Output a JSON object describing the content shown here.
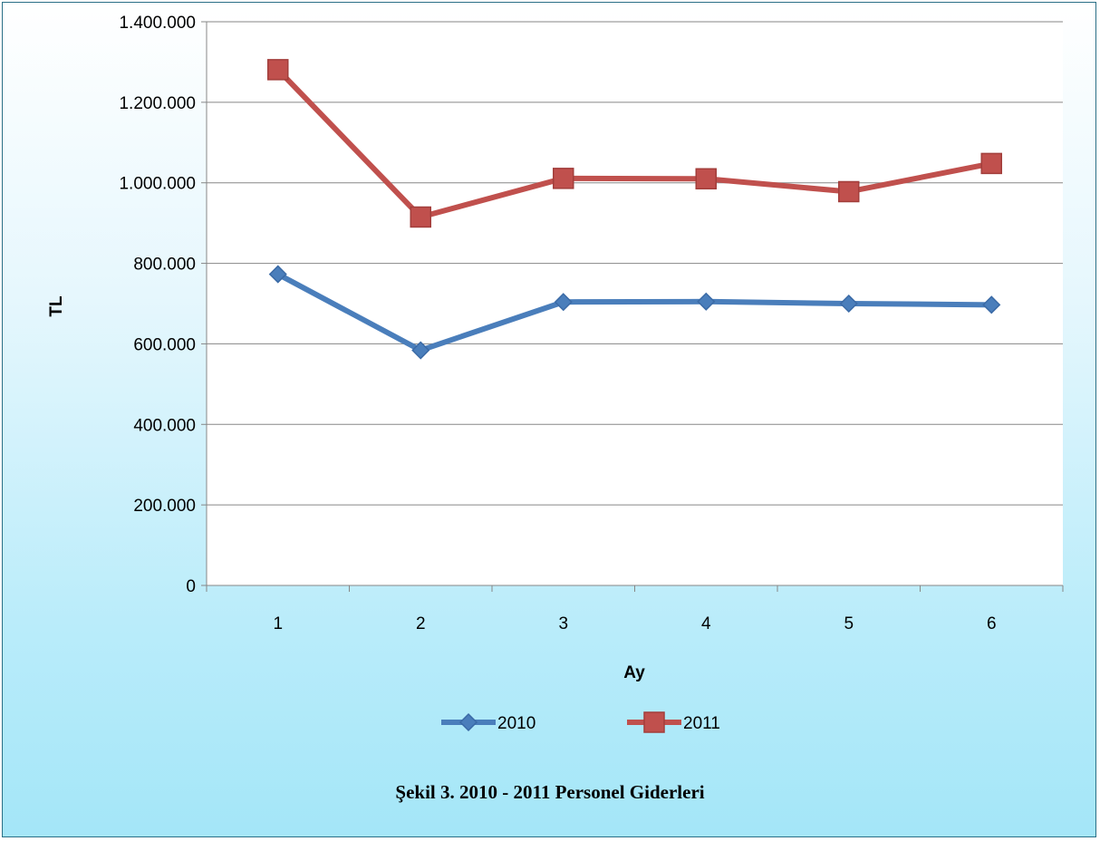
{
  "chart_data": {
    "type": "line",
    "categories": [
      "1",
      "2",
      "3",
      "4",
      "5",
      "6"
    ],
    "series": [
      {
        "name": "2010",
        "values": [
          773000,
          584000,
          704000,
          705000,
          700000,
          697000
        ],
        "color": "#4a7ebb",
        "marker": "diamond"
      },
      {
        "name": "2011",
        "values": [
          1281000,
          915000,
          1011000,
          1010000,
          978000,
          1048000
        ],
        "color": "#c0504d",
        "marker": "square"
      }
    ],
    "title": "",
    "xlabel": "Ay",
    "ylabel": "TL",
    "ylim": [
      0,
      1400000
    ],
    "yticks": [
      0,
      200000,
      400000,
      600000,
      800000,
      1000000,
      1200000,
      1400000
    ],
    "ytick_labels": [
      "0",
      "200.000",
      "400.000",
      "600.000",
      "800.000",
      "1.000.000",
      "1.200.000",
      "1.400.000"
    ],
    "grid": "horizontal",
    "legend_position": "bottom"
  },
  "caption": "Şekil 3. 2010 - 2011 Personel Giderleri"
}
